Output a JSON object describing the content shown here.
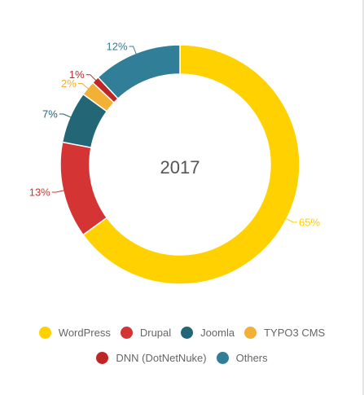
{
  "chart_data": {
    "type": "pie",
    "title": "2017",
    "categories": [
      "WordPress",
      "Drupal",
      "Joomla",
      "TYPO3 CMS",
      "DNN (DotNetNuke)",
      "Others"
    ],
    "values": [
      65,
      13,
      7,
      2,
      1,
      12
    ],
    "value_labels": [
      "65%",
      "13%",
      "7%",
      "2%",
      "1%",
      "12%"
    ],
    "colors": [
      "#ffd100",
      "#d43434",
      "#236675",
      "#f2b136",
      "#bf2727",
      "#317e98"
    ],
    "donut": true,
    "legend_position": "bottom",
    "legend_rows": [
      [
        "WordPress",
        "Drupal",
        "Joomla",
        "TYPO3 CMS"
      ],
      [
        "DNN (DotNetNuke)",
        "Others"
      ]
    ]
  }
}
